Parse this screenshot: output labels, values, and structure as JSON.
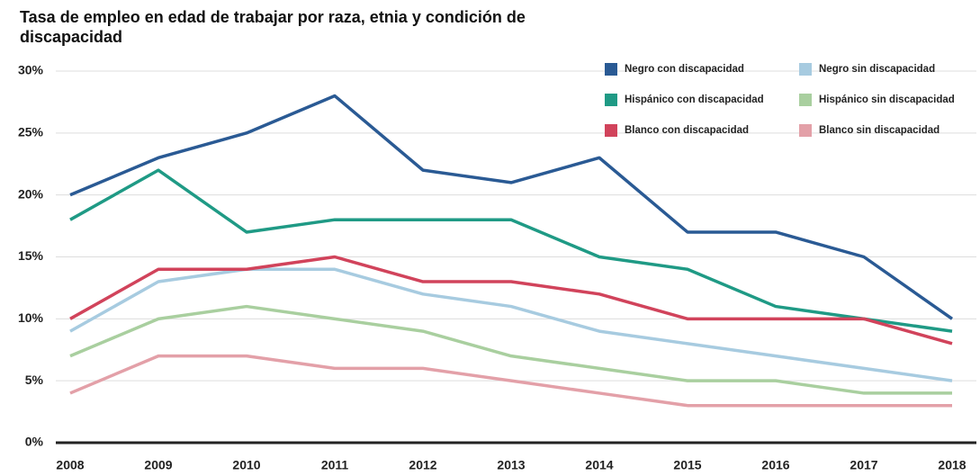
{
  "chart_data": {
    "type": "line",
    "title": "Tasa de empleo en edad de trabajar por raza, etnia y condición de discapacidad",
    "categories": [
      "2008",
      "2009",
      "2010",
      "2011",
      "2012",
      "2013",
      "2014",
      "2015",
      "2016",
      "2017",
      "2018"
    ],
    "series": [
      {
        "name": "Negro con discapacidad",
        "color": "#2a5a94",
        "values": [
          20,
          23,
          25,
          28,
          22,
          21,
          23,
          17,
          17,
          15,
          10
        ]
      },
      {
        "name": "Negro sin discapacidad",
        "color": "#a7cbe0",
        "values": [
          9,
          13,
          14,
          14,
          12,
          11,
          9,
          8,
          7,
          6,
          5
        ]
      },
      {
        "name": "Hispánico con discapacidad",
        "color": "#1f9a85",
        "values": [
          18,
          22,
          17,
          18,
          18,
          18,
          15,
          14,
          11,
          10,
          9
        ]
      },
      {
        "name": "Hispánico sin discapacidad",
        "color": "#a9cf9f",
        "values": [
          7,
          10,
          11,
          10,
          9,
          7,
          6,
          5,
          5,
          4,
          4
        ]
      },
      {
        "name": "Blanco con discapacidad",
        "color": "#d1435b",
        "values": [
          10,
          14,
          14,
          15,
          13,
          13,
          12,
          10,
          10,
          10,
          8
        ]
      },
      {
        "name": "Blanco sin discapacidad",
        "color": "#e3a0a8",
        "values": [
          4,
          7,
          7,
          6,
          6,
          5,
          4,
          3,
          3,
          3,
          3
        ]
      }
    ],
    "ylim": [
      0,
      30
    ],
    "yticks": [
      {
        "value": 0,
        "label": "0%"
      },
      {
        "value": 5,
        "label": "5%"
      },
      {
        "value": 10,
        "label": "10%"
      },
      {
        "value": 15,
        "label": "15%"
      },
      {
        "value": 20,
        "label": "20%"
      },
      {
        "value": 25,
        "label": "25%"
      },
      {
        "value": 30,
        "label": "30%"
      }
    ],
    "grid": true
  }
}
